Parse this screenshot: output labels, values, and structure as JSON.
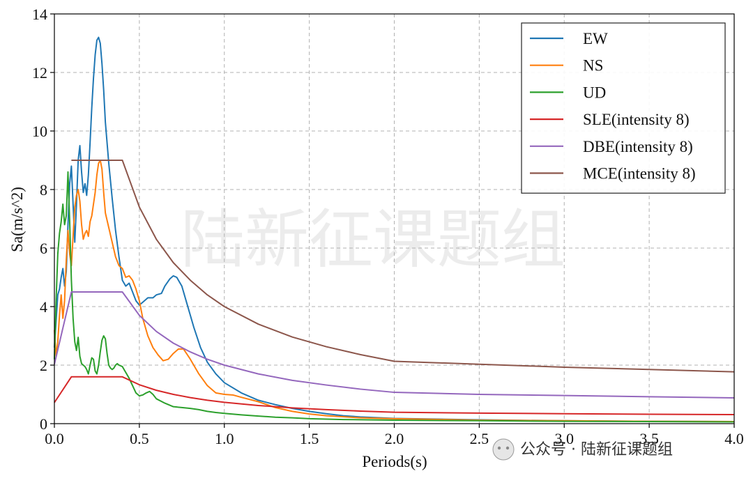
{
  "watermark_text": "陆新征课题组",
  "footer_watermark": "公众号 · 陆新征课题组",
  "chart_data": {
    "type": "line",
    "title": "",
    "xlabel": "Periods(s)",
    "ylabel": "Sa(m/s^2)",
    "xlim": [
      0,
      4
    ],
    "ylim": [
      0,
      14
    ],
    "xticks": [
      0,
      0.5,
      1,
      1.5,
      2,
      2.5,
      3,
      3.5,
      4
    ],
    "xtick_labels": [
      "0.0",
      "0.5",
      "1.0",
      "1.5",
      "2.0",
      "2.5",
      "3.0",
      "3.5",
      "4.0"
    ],
    "yticks": [
      0,
      2,
      4,
      6,
      8,
      10,
      12,
      14
    ],
    "ytick_labels": [
      "0",
      "2",
      "4",
      "6",
      "8",
      "10",
      "12",
      "14"
    ],
    "grid": true,
    "legend_position": "top-right",
    "series": [
      {
        "name": "EW",
        "color": "#1f77b4",
        "points": [
          [
            0,
            2.6
          ],
          [
            0.01,
            3.5
          ],
          [
            0.02,
            4.4
          ],
          [
            0.03,
            4.6
          ],
          [
            0.04,
            5.0
          ],
          [
            0.05,
            5.3
          ],
          [
            0.06,
            4.7
          ],
          [
            0.07,
            5.2
          ],
          [
            0.08,
            6.8
          ],
          [
            0.09,
            8.2
          ],
          [
            0.1,
            8.8
          ],
          [
            0.11,
            7.5
          ],
          [
            0.12,
            6.2
          ],
          [
            0.13,
            7.5
          ],
          [
            0.14,
            9.0
          ],
          [
            0.15,
            9.5
          ],
          [
            0.16,
            8.6
          ],
          [
            0.17,
            7.9
          ],
          [
            0.18,
            8.2
          ],
          [
            0.19,
            7.8
          ],
          [
            0.2,
            8.5
          ],
          [
            0.21,
            9.6
          ],
          [
            0.22,
            10.8
          ],
          [
            0.23,
            11.8
          ],
          [
            0.24,
            12.6
          ],
          [
            0.25,
            13.1
          ],
          [
            0.26,
            13.2
          ],
          [
            0.27,
            13.0
          ],
          [
            0.28,
            12.3
          ],
          [
            0.29,
            11.4
          ],
          [
            0.3,
            10.3
          ],
          [
            0.32,
            8.9
          ],
          [
            0.34,
            7.7
          ],
          [
            0.36,
            6.6
          ],
          [
            0.38,
            5.7
          ],
          [
            0.4,
            4.9
          ],
          [
            0.42,
            4.7
          ],
          [
            0.44,
            4.8
          ],
          [
            0.46,
            4.5
          ],
          [
            0.48,
            4.2
          ],
          [
            0.5,
            4.05
          ],
          [
            0.52,
            4.15
          ],
          [
            0.55,
            4.3
          ],
          [
            0.58,
            4.3
          ],
          [
            0.6,
            4.4
          ],
          [
            0.63,
            4.45
          ],
          [
            0.65,
            4.7
          ],
          [
            0.68,
            4.95
          ],
          [
            0.7,
            5.05
          ],
          [
            0.72,
            5.0
          ],
          [
            0.75,
            4.7
          ],
          [
            0.78,
            4.1
          ],
          [
            0.82,
            3.3
          ],
          [
            0.86,
            2.6
          ],
          [
            0.9,
            2.1
          ],
          [
            0.95,
            1.7
          ],
          [
            1.0,
            1.4
          ],
          [
            1.1,
            1.05
          ],
          [
            1.2,
            0.8
          ],
          [
            1.3,
            0.65
          ],
          [
            1.4,
            0.52
          ],
          [
            1.5,
            0.42
          ],
          [
            1.6,
            0.34
          ],
          [
            1.7,
            0.27
          ],
          [
            1.8,
            0.23
          ],
          [
            2.0,
            0.18
          ],
          [
            2.5,
            0.13
          ],
          [
            3.0,
            0.1
          ],
          [
            3.5,
            0.08
          ],
          [
            4.0,
            0.07
          ]
        ]
      },
      {
        "name": "NS",
        "color": "#ff7f0e",
        "points": [
          [
            0,
            3.2
          ],
          [
            0.01,
            2.3
          ],
          [
            0.02,
            2.8
          ],
          [
            0.03,
            3.7
          ],
          [
            0.04,
            4.4
          ],
          [
            0.05,
            3.6
          ],
          [
            0.06,
            4.2
          ],
          [
            0.07,
            5.6
          ],
          [
            0.08,
            6.6
          ],
          [
            0.09,
            5.8
          ],
          [
            0.1,
            5.4
          ],
          [
            0.11,
            6.4
          ],
          [
            0.12,
            7.4
          ],
          [
            0.13,
            7.8
          ],
          [
            0.14,
            8.0
          ],
          [
            0.15,
            7.6
          ],
          [
            0.16,
            6.8
          ],
          [
            0.17,
            6.3
          ],
          [
            0.18,
            6.5
          ],
          [
            0.19,
            6.6
          ],
          [
            0.2,
            6.4
          ],
          [
            0.21,
            6.9
          ],
          [
            0.22,
            7.1
          ],
          [
            0.23,
            7.5
          ],
          [
            0.24,
            7.9
          ],
          [
            0.25,
            8.5
          ],
          [
            0.26,
            8.9
          ],
          [
            0.27,
            9.0
          ],
          [
            0.28,
            8.7
          ],
          [
            0.29,
            7.9
          ],
          [
            0.3,
            7.2
          ],
          [
            0.32,
            6.7
          ],
          [
            0.34,
            6.2
          ],
          [
            0.36,
            5.7
          ],
          [
            0.38,
            5.4
          ],
          [
            0.4,
            5.3
          ],
          [
            0.42,
            5.0
          ],
          [
            0.44,
            5.05
          ],
          [
            0.46,
            4.9
          ],
          [
            0.48,
            4.6
          ],
          [
            0.5,
            4.2
          ],
          [
            0.52,
            3.6
          ],
          [
            0.55,
            3.0
          ],
          [
            0.58,
            2.6
          ],
          [
            0.61,
            2.35
          ],
          [
            0.64,
            2.15
          ],
          [
            0.67,
            2.2
          ],
          [
            0.7,
            2.4
          ],
          [
            0.73,
            2.55
          ],
          [
            0.76,
            2.55
          ],
          [
            0.8,
            2.2
          ],
          [
            0.85,
            1.7
          ],
          [
            0.9,
            1.3
          ],
          [
            0.95,
            1.05
          ],
          [
            1.0,
            1.0
          ],
          [
            1.05,
            0.98
          ],
          [
            1.1,
            0.9
          ],
          [
            1.2,
            0.75
          ],
          [
            1.3,
            0.55
          ],
          [
            1.4,
            0.42
          ],
          [
            1.5,
            0.33
          ],
          [
            1.6,
            0.27
          ],
          [
            1.8,
            0.2
          ],
          [
            2.0,
            0.17
          ],
          [
            2.5,
            0.12
          ],
          [
            3.0,
            0.1
          ],
          [
            3.5,
            0.08
          ],
          [
            4.0,
            0.07
          ]
        ]
      },
      {
        "name": "UD",
        "color": "#2ca02c",
        "points": [
          [
            0,
            2.2
          ],
          [
            0.01,
            4.2
          ],
          [
            0.02,
            5.8
          ],
          [
            0.03,
            6.5
          ],
          [
            0.04,
            6.9
          ],
          [
            0.05,
            7.5
          ],
          [
            0.06,
            6.8
          ],
          [
            0.07,
            7.1
          ],
          [
            0.08,
            8.6
          ],
          [
            0.09,
            6.9
          ],
          [
            0.1,
            4.9
          ],
          [
            0.11,
            3.6
          ],
          [
            0.12,
            2.8
          ],
          [
            0.13,
            2.5
          ],
          [
            0.14,
            2.95
          ],
          [
            0.15,
            2.3
          ],
          [
            0.16,
            2.05
          ],
          [
            0.17,
            2.0
          ],
          [
            0.18,
            1.95
          ],
          [
            0.19,
            1.85
          ],
          [
            0.2,
            1.7
          ],
          [
            0.21,
            2.0
          ],
          [
            0.22,
            2.25
          ],
          [
            0.23,
            2.2
          ],
          [
            0.24,
            1.8
          ],
          [
            0.25,
            1.7
          ],
          [
            0.26,
            2.0
          ],
          [
            0.27,
            2.45
          ],
          [
            0.28,
            2.85
          ],
          [
            0.29,
            3.0
          ],
          [
            0.3,
            2.9
          ],
          [
            0.31,
            2.4
          ],
          [
            0.32,
            2.0
          ],
          [
            0.33,
            1.9
          ],
          [
            0.34,
            1.85
          ],
          [
            0.35,
            1.9
          ],
          [
            0.36,
            2.0
          ],
          [
            0.37,
            2.05
          ],
          [
            0.38,
            2.0
          ],
          [
            0.4,
            1.95
          ],
          [
            0.42,
            1.75
          ],
          [
            0.44,
            1.55
          ],
          [
            0.46,
            1.3
          ],
          [
            0.48,
            1.05
          ],
          [
            0.5,
            0.95
          ],
          [
            0.52,
            0.98
          ],
          [
            0.54,
            1.05
          ],
          [
            0.56,
            1.1
          ],
          [
            0.58,
            1.0
          ],
          [
            0.6,
            0.85
          ],
          [
            0.65,
            0.7
          ],
          [
            0.7,
            0.58
          ],
          [
            0.75,
            0.55
          ],
          [
            0.8,
            0.52
          ],
          [
            0.85,
            0.48
          ],
          [
            0.9,
            0.42
          ],
          [
            0.95,
            0.38
          ],
          [
            1.0,
            0.35
          ],
          [
            1.1,
            0.3
          ],
          [
            1.2,
            0.26
          ],
          [
            1.3,
            0.22
          ],
          [
            1.4,
            0.2
          ],
          [
            1.5,
            0.17
          ],
          [
            1.7,
            0.14
          ],
          [
            2.0,
            0.12
          ],
          [
            2.5,
            0.1
          ],
          [
            3.0,
            0.08
          ],
          [
            3.5,
            0.07
          ],
          [
            4.0,
            0.06
          ]
        ]
      },
      {
        "name": "SLE(intensity 8)",
        "color": "#d62728",
        "points": [
          [
            0,
            0.72
          ],
          [
            0.1,
            1.6
          ],
          [
            0.4,
            1.6
          ],
          [
            0.5,
            1.33
          ],
          [
            0.6,
            1.14
          ],
          [
            0.7,
            1.0
          ],
          [
            0.8,
            0.89
          ],
          [
            0.9,
            0.8
          ],
          [
            1.0,
            0.73
          ],
          [
            1.2,
            0.62
          ],
          [
            1.4,
            0.54
          ],
          [
            1.6,
            0.48
          ],
          [
            1.8,
            0.43
          ],
          [
            2.0,
            0.39
          ],
          [
            2.5,
            0.36
          ],
          [
            3.0,
            0.34
          ],
          [
            3.5,
            0.32
          ],
          [
            4.0,
            0.31
          ]
        ]
      },
      {
        "name": "DBE(intensity 8)",
        "color": "#9467bd",
        "points": [
          [
            0,
            2.03
          ],
          [
            0.1,
            4.5
          ],
          [
            0.4,
            4.5
          ],
          [
            0.5,
            3.7
          ],
          [
            0.6,
            3.15
          ],
          [
            0.7,
            2.75
          ],
          [
            0.8,
            2.45
          ],
          [
            0.9,
            2.2
          ],
          [
            1.0,
            2.0
          ],
          [
            1.2,
            1.7
          ],
          [
            1.4,
            1.48
          ],
          [
            1.6,
            1.32
          ],
          [
            1.8,
            1.18
          ],
          [
            2.0,
            1.07
          ],
          [
            2.5,
            1.0
          ],
          [
            3.0,
            0.96
          ],
          [
            3.5,
            0.92
          ],
          [
            4.0,
            0.88
          ]
        ]
      },
      {
        "name": "MCE(intensity 8)",
        "color": "#8c564b",
        "points": [
          [
            0.1,
            9.0
          ],
          [
            0.4,
            9.0
          ],
          [
            0.5,
            7.4
          ],
          [
            0.6,
            6.3
          ],
          [
            0.7,
            5.5
          ],
          [
            0.8,
            4.9
          ],
          [
            0.9,
            4.4
          ],
          [
            1.0,
            4.0
          ],
          [
            1.2,
            3.4
          ],
          [
            1.4,
            2.96
          ],
          [
            1.6,
            2.63
          ],
          [
            1.8,
            2.36
          ],
          [
            2.0,
            2.13
          ],
          [
            2.5,
            2.03
          ],
          [
            3.0,
            1.93
          ],
          [
            3.5,
            1.85
          ],
          [
            4.0,
            1.77
          ]
        ]
      }
    ]
  }
}
